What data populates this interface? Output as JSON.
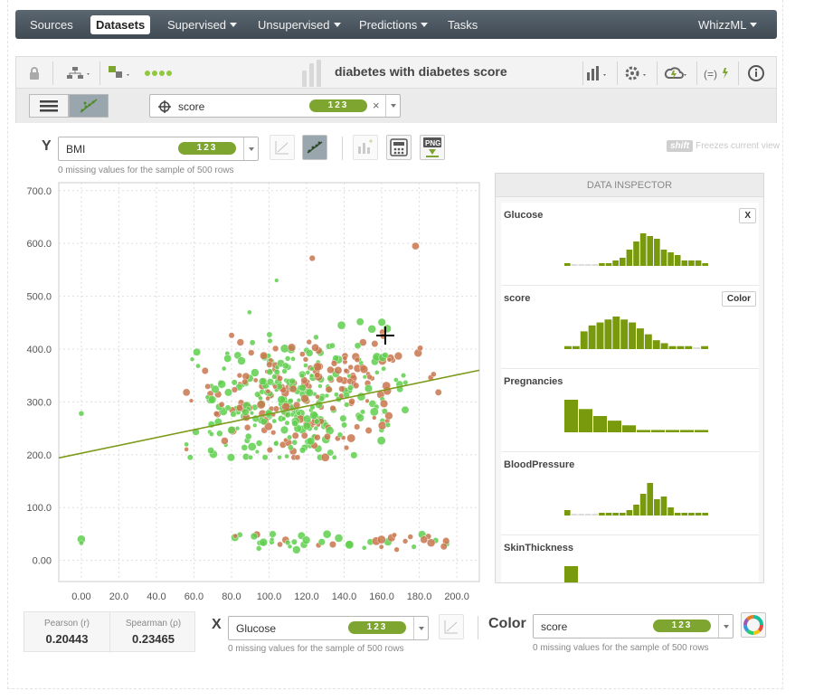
{
  "nav": {
    "items": [
      {
        "label": "Sources",
        "dropdown": false,
        "active": false
      },
      {
        "label": "Datasets",
        "dropdown": false,
        "active": true
      },
      {
        "label": "Supervised",
        "dropdown": true,
        "active": false
      },
      {
        "label": "Unsupervised",
        "dropdown": true,
        "active": false
      },
      {
        "label": "Predictions",
        "dropdown": true,
        "active": false
      },
      {
        "label": "Tasks",
        "dropdown": false,
        "active": false
      }
    ],
    "whizzml_label": "WhizzML"
  },
  "toolbar": {
    "title": "diabetes with diabetes score",
    "icons": [
      "lock-icon",
      "network-icon",
      "size-icon",
      "dots-icon",
      "chart-icon",
      "gear-icon",
      "cloud-icon",
      "formula-icon",
      "info-icon"
    ]
  },
  "subbar": {
    "filter_field": "score",
    "filter_badge": "123"
  },
  "y_axis_control": {
    "label": "Y",
    "field": "BMI",
    "badge": "123",
    "note": "0 missing values for the sample of 500 rows"
  },
  "x_axis_control": {
    "label": "X",
    "field": "Glucose",
    "badge": "123",
    "note": "0 missing values for the sample of 500 rows"
  },
  "color_control": {
    "label": "Color",
    "field": "score",
    "badge": "123",
    "note": "0 missing values for the sample of 500 rows"
  },
  "freeze_hint": {
    "key": "shift",
    "text": "Freezes current view"
  },
  "correlation": {
    "pearson_label": "Pearson (r)",
    "pearson_value": "0.20443",
    "spearman_label": "Spearman (ρ)",
    "spearman_value": "0.23465"
  },
  "inspector": {
    "header": "DATA INSPECTOR",
    "fields": [
      {
        "name": "Glucose",
        "button": "X",
        "hist": [
          1,
          0,
          0,
          0,
          0,
          1,
          1,
          2,
          3,
          6,
          9,
          12,
          11,
          10,
          6,
          5,
          4,
          2,
          2,
          2,
          1
        ]
      },
      {
        "name": "score",
        "button": "Color",
        "hist": [
          1,
          1,
          6,
          8,
          9,
          10,
          11,
          10,
          9,
          7,
          5,
          3,
          2,
          1,
          1,
          1,
          0,
          1
        ]
      },
      {
        "name": "Pregnancies",
        "button": "",
        "hist": [
          14,
          10,
          7,
          5,
          3,
          1,
          1,
          1,
          1,
          1
        ]
      },
      {
        "name": "BloodPressure",
        "button": "",
        "hist": [
          2,
          0,
          0,
          0,
          0,
          1,
          1,
          1,
          1,
          2,
          4,
          8,
          12,
          6,
          7,
          3,
          1,
          1,
          1,
          1,
          1
        ]
      },
      {
        "name": "SkinThickness",
        "button": "",
        "hist": [
          6
        ]
      }
    ]
  },
  "chart_data": {
    "type": "scatter",
    "xlabel": "",
    "ylabel": "",
    "xlim": [
      -12,
      212
    ],
    "ylim": [
      -40,
      715
    ],
    "x_ticks": [
      "0.00",
      "20.0",
      "40.0",
      "60.0",
      "80.0",
      "100.0",
      "120.0",
      "140.0",
      "160.0",
      "180.0",
      "200.0"
    ],
    "y_ticks": [
      "0.00",
      "100.0",
      "200.0",
      "300.0",
      "400.0",
      "500.0",
      "600.0",
      "700.0"
    ],
    "regression_line": {
      "x": [
        -12,
        212
      ],
      "y": [
        194,
        360
      ]
    },
    "point_count_estimate": 500,
    "colors": {
      "low": "#5fcf4e",
      "high": "#c9764e",
      "line": "#7d9a1a"
    }
  },
  "colors": {
    "accent_green": "#7da52f",
    "nav_bg": "#4a555e"
  }
}
